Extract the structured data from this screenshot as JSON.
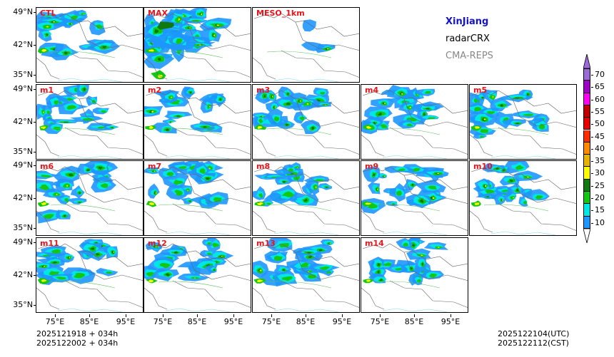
{
  "legend": {
    "region": "XinJiang",
    "observation": "radarCRX",
    "system": "CMA-REPS",
    "region_color": "#1414c8",
    "system_color": "#888888"
  },
  "panels": [
    {
      "label": "CTL"
    },
    {
      "label": "MAX"
    },
    {
      "label": "MESO_1km"
    },
    {
      "label": "m1"
    },
    {
      "label": "m2"
    },
    {
      "label": "m3"
    },
    {
      "label": "m4"
    },
    {
      "label": "m5"
    },
    {
      "label": "m6"
    },
    {
      "label": "m7"
    },
    {
      "label": "m8"
    },
    {
      "label": "m9"
    },
    {
      "label": "m10"
    },
    {
      "label": "m11"
    },
    {
      "label": "m12"
    },
    {
      "label": "m13"
    },
    {
      "label": "m14"
    }
  ],
  "lat_ticks": [
    "49°N",
    "42°N",
    "35°N"
  ],
  "lon_ticks": [
    "75°E",
    "85°E",
    "95°E"
  ],
  "colorbar": {
    "values": [
      "70",
      "65",
      "60",
      "55",
      "50",
      "45",
      "40",
      "35",
      "30",
      "25",
      "20",
      "15",
      "10"
    ],
    "colors": [
      "#9a6ad6",
      "#a000c8",
      "#ff00f0",
      "#c00000",
      "#e80000",
      "#ff2a00",
      "#ff8c00",
      "#e6b400",
      "#ffff00",
      "#107a10",
      "#12c812",
      "#00e6e6",
      "#1e96ff"
    ]
  },
  "footer": {
    "init_line1": "2025121918  +  034h",
    "init_line2": "2025122002  +  034h",
    "valid_utc": "2025122104(UTC)",
    "valid_cst": "2025122112(CST)"
  }
}
